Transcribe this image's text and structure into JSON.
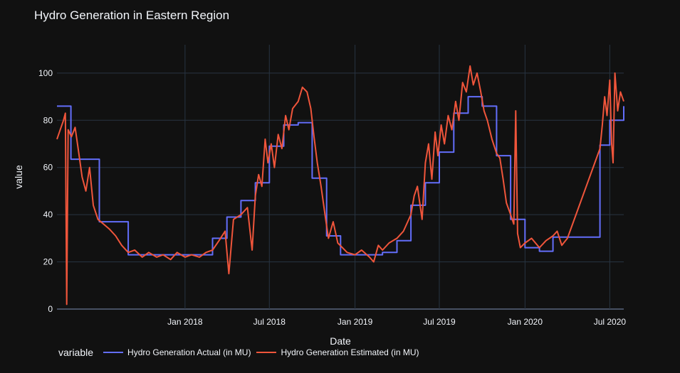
{
  "chart_data": {
    "type": "line",
    "title": "Hydro Generation in Eastern Region",
    "xlabel": "Date",
    "ylabel": "value",
    "xlim": [
      "2017-04-01",
      "2020-07-31"
    ],
    "ylim": [
      0,
      112
    ],
    "x_ticks": [
      {
        "date": "2018-01-01",
        "label": "Jan 2018"
      },
      {
        "date": "2018-07-01",
        "label": "Jul 2018"
      },
      {
        "date": "2019-01-01",
        "label": "Jan 2019"
      },
      {
        "date": "2019-07-01",
        "label": "Jul 2019"
      },
      {
        "date": "2020-01-01",
        "label": "Jan 2020"
      },
      {
        "date": "2020-07-01",
        "label": "Jul 2020"
      }
    ],
    "y_ticks": [
      0,
      20,
      40,
      60,
      80,
      100
    ],
    "grid": true,
    "legend": {
      "title": "variable",
      "placement": "bottom-left"
    },
    "series": [
      {
        "name": "Hydro Generation Actual (in MU)",
        "color": "#636efa",
        "step": true,
        "points": [
          [
            "2017-04-01",
            86
          ],
          [
            "2017-05-01",
            63.5
          ],
          [
            "2017-06-01",
            63.5
          ],
          [
            "2017-07-01",
            37
          ],
          [
            "2017-08-01",
            37
          ],
          [
            "2017-09-01",
            23
          ],
          [
            "2017-10-01",
            23
          ],
          [
            "2017-11-01",
            23
          ],
          [
            "2017-12-01",
            23
          ],
          [
            "2018-01-01",
            23
          ],
          [
            "2018-02-01",
            23
          ],
          [
            "2018-03-01",
            30
          ],
          [
            "2018-04-01",
            39
          ],
          [
            "2018-05-01",
            46
          ],
          [
            "2018-06-01",
            53.5
          ],
          [
            "2018-07-01",
            69
          ],
          [
            "2018-08-01",
            78
          ],
          [
            "2018-09-01",
            79
          ],
          [
            "2018-10-01",
            55.5
          ],
          [
            "2018-11-01",
            31
          ],
          [
            "2018-12-01",
            23
          ],
          [
            "2019-01-01",
            23
          ],
          [
            "2019-02-01",
            23
          ],
          [
            "2019-03-01",
            24
          ],
          [
            "2019-04-01",
            29
          ],
          [
            "2019-05-01",
            44
          ],
          [
            "2019-06-01",
            53.5
          ],
          [
            "2019-07-01",
            66.5
          ],
          [
            "2019-08-01",
            83
          ],
          [
            "2019-09-01",
            90
          ],
          [
            "2019-10-01",
            86
          ],
          [
            "2019-11-01",
            65
          ],
          [
            "2019-12-01",
            38
          ],
          [
            "2020-01-01",
            26
          ],
          [
            "2020-02-01",
            24.5
          ],
          [
            "2020-03-01",
            30.5
          ],
          [
            "2020-06-10",
            69.5
          ],
          [
            "2020-07-01",
            80
          ],
          [
            "2020-07-31",
            86
          ]
        ]
      },
      {
        "name": "Hydro Generation Estimated (in MU)",
        "color": "#ef553b",
        "step": false,
        "points": [
          [
            "2017-04-01",
            72
          ],
          [
            "2017-04-08",
            76
          ],
          [
            "2017-04-15",
            80
          ],
          [
            "2017-04-19",
            83
          ],
          [
            "2017-04-22",
            2
          ],
          [
            "2017-04-25",
            76
          ],
          [
            "2017-05-02",
            73
          ],
          [
            "2017-05-10",
            77
          ],
          [
            "2017-05-18",
            66
          ],
          [
            "2017-05-25",
            56
          ],
          [
            "2017-06-02",
            50
          ],
          [
            "2017-06-10",
            60
          ],
          [
            "2017-06-18",
            44
          ],
          [
            "2017-06-28",
            38
          ],
          [
            "2017-07-10",
            36
          ],
          [
            "2017-07-22",
            34
          ],
          [
            "2017-08-05",
            31
          ],
          [
            "2017-08-18",
            27
          ],
          [
            "2017-09-01",
            24
          ],
          [
            "2017-09-15",
            25
          ],
          [
            "2017-10-01",
            22
          ],
          [
            "2017-10-15",
            24
          ],
          [
            "2017-11-01",
            22
          ],
          [
            "2017-11-15",
            23
          ],
          [
            "2017-12-01",
            21
          ],
          [
            "2017-12-15",
            24
          ],
          [
            "2018-01-01",
            22
          ],
          [
            "2018-01-15",
            23
          ],
          [
            "2018-02-01",
            22
          ],
          [
            "2018-02-15",
            24
          ],
          [
            "2018-03-01",
            25
          ],
          [
            "2018-03-15",
            29
          ],
          [
            "2018-03-28",
            33
          ],
          [
            "2018-04-05",
            15
          ],
          [
            "2018-04-15",
            38
          ],
          [
            "2018-05-01",
            40
          ],
          [
            "2018-05-15",
            43
          ],
          [
            "2018-05-25",
            25
          ],
          [
            "2018-06-01",
            48
          ],
          [
            "2018-06-08",
            57
          ],
          [
            "2018-06-15",
            52
          ],
          [
            "2018-06-22",
            72
          ],
          [
            "2018-06-28",
            62
          ],
          [
            "2018-07-05",
            70
          ],
          [
            "2018-07-12",
            60
          ],
          [
            "2018-07-20",
            74
          ],
          [
            "2018-07-28",
            68
          ],
          [
            "2018-08-05",
            82
          ],
          [
            "2018-08-12",
            76
          ],
          [
            "2018-08-20",
            85
          ],
          [
            "2018-09-01",
            88
          ],
          [
            "2018-09-10",
            94
          ],
          [
            "2018-09-20",
            92
          ],
          [
            "2018-09-28",
            85
          ],
          [
            "2018-10-05",
            73
          ],
          [
            "2018-10-12",
            62
          ],
          [
            "2018-10-20",
            52
          ],
          [
            "2018-10-30",
            38
          ],
          [
            "2018-11-05",
            30
          ],
          [
            "2018-11-15",
            37
          ],
          [
            "2018-11-25",
            28
          ],
          [
            "2018-12-05",
            26
          ],
          [
            "2018-12-15",
            24
          ],
          [
            "2019-01-01",
            23
          ],
          [
            "2019-01-15",
            25
          ],
          [
            "2019-02-01",
            22
          ],
          [
            "2019-02-10",
            20
          ],
          [
            "2019-02-20",
            27
          ],
          [
            "2019-03-01",
            25
          ],
          [
            "2019-03-15",
            28
          ],
          [
            "2019-04-01",
            30
          ],
          [
            "2019-04-15",
            33
          ],
          [
            "2019-05-01",
            40
          ],
          [
            "2019-05-08",
            48
          ],
          [
            "2019-05-15",
            52
          ],
          [
            "2019-05-25",
            38
          ],
          [
            "2019-06-01",
            62
          ],
          [
            "2019-06-08",
            70
          ],
          [
            "2019-06-15",
            55
          ],
          [
            "2019-06-22",
            75
          ],
          [
            "2019-06-28",
            65
          ],
          [
            "2019-07-05",
            78
          ],
          [
            "2019-07-12",
            70
          ],
          [
            "2019-07-20",
            82
          ],
          [
            "2019-07-28",
            76
          ],
          [
            "2019-08-05",
            88
          ],
          [
            "2019-08-12",
            80
          ],
          [
            "2019-08-20",
            96
          ],
          [
            "2019-08-28",
            92
          ],
          [
            "2019-09-05",
            103
          ],
          [
            "2019-09-12",
            95
          ],
          [
            "2019-09-20",
            100
          ],
          [
            "2019-09-28",
            92
          ],
          [
            "2019-10-05",
            84
          ],
          [
            "2019-10-12",
            80
          ],
          [
            "2019-10-22",
            72
          ],
          [
            "2019-11-01",
            66
          ],
          [
            "2019-11-08",
            64
          ],
          [
            "2019-11-15",
            55
          ],
          [
            "2019-11-22",
            45
          ],
          [
            "2019-12-01",
            40
          ],
          [
            "2019-12-08",
            36
          ],
          [
            "2019-12-12",
            84
          ],
          [
            "2019-12-16",
            32
          ],
          [
            "2019-12-22",
            26
          ],
          [
            "2020-01-01",
            28
          ],
          [
            "2020-01-15",
            30
          ],
          [
            "2020-02-01",
            26
          ],
          [
            "2020-02-15",
            29
          ],
          [
            "2020-03-01",
            31
          ],
          [
            "2020-03-10",
            33
          ],
          [
            "2020-03-20",
            27
          ],
          [
            "2020-04-01",
            30
          ],
          [
            "2020-06-10",
            68
          ],
          [
            "2020-06-15",
            78
          ],
          [
            "2020-06-20",
            90
          ],
          [
            "2020-06-25",
            82
          ],
          [
            "2020-07-01",
            97
          ],
          [
            "2020-07-05",
            70
          ],
          [
            "2020-07-08",
            62
          ],
          [
            "2020-07-12",
            100
          ],
          [
            "2020-07-18",
            84
          ],
          [
            "2020-07-24",
            92
          ],
          [
            "2020-07-31",
            88
          ]
        ]
      }
    ]
  }
}
